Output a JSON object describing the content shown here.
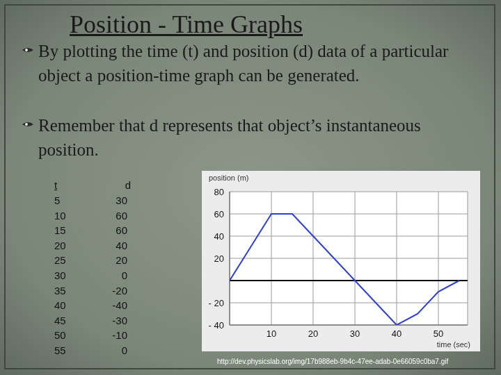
{
  "title": "Position - Time Graphs",
  "bullets": [
    "By plotting the time (t) and position (d) data of a particular object a position-time graph can be generated.",
    "Remember that d represents that object’s instantaneous position."
  ],
  "table": {
    "header": [
      "t",
      "d"
    ],
    "rows": [
      [
        5,
        30
      ],
      [
        10,
        60
      ],
      [
        15,
        60
      ],
      [
        20,
        40
      ],
      [
        25,
        20
      ],
      [
        30,
        0
      ],
      [
        35,
        -20
      ],
      [
        40,
        -40
      ],
      [
        45,
        -30
      ],
      [
        50,
        -10
      ],
      [
        55,
        0
      ]
    ]
  },
  "source": "http://dev.physicslab.org/img/17b988eb-9b4c-47ee-adab-0e66059c0ba7.gif",
  "chart_data": {
    "type": "line",
    "x_label": "time (sec)",
    "y_label": "position (m)",
    "x": [
      0,
      5,
      10,
      15,
      20,
      25,
      30,
      35,
      40,
      45,
      50,
      55
    ],
    "values": [
      0,
      30,
      60,
      60,
      40,
      20,
      0,
      -20,
      -40,
      -30,
      -10,
      0
    ],
    "color": "#2c3ee0",
    "xlim": [
      0,
      57
    ],
    "ylim": [
      -40,
      80
    ],
    "xticks": [
      10,
      20,
      30,
      40,
      50
    ],
    "yticks": [
      80,
      60,
      40,
      20,
      {
        "value": -20,
        "label": "- 20"
      },
      {
        "value": -40,
        "label": "- 40"
      }
    ],
    "grid": true,
    "marker": "none"
  }
}
